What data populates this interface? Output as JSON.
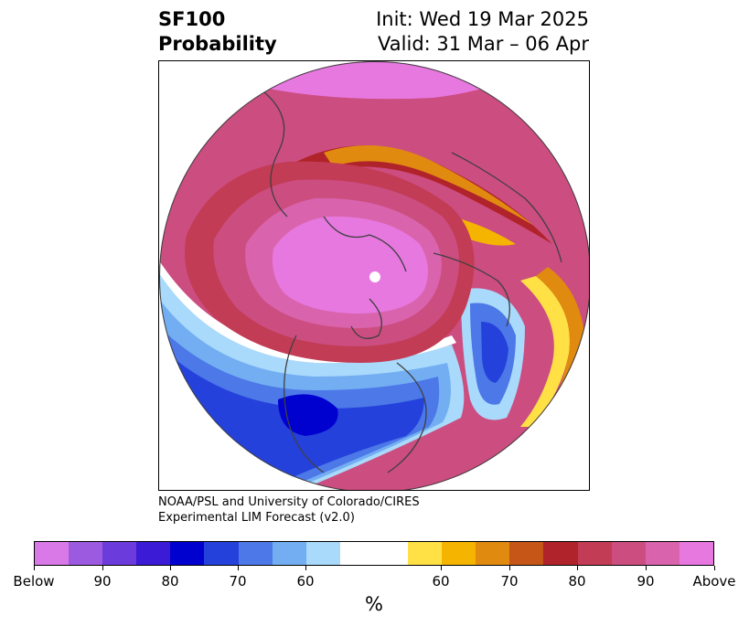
{
  "header": {
    "left_line1": "SF100",
    "left_line2": "Probability",
    "init": "Init: Wed 19 Mar 2025",
    "valid": "Valid: 31 Mar – 06 Apr"
  },
  "credit": {
    "line1": "NOAA/PSL and University of Colorado/CIRES",
    "line2": "Experimental LIM Forecast (v2.0)"
  },
  "colorbar": {
    "colors": [
      "#d979e8",
      "#9c5ae0",
      "#6c3bdb",
      "#3b1bd6",
      "#0000cf",
      "#2541dc",
      "#4c78e8",
      "#73aef2",
      "#a9d9fb",
      "#ffffff",
      "#ffffff",
      "#ffe045",
      "#f4b400",
      "#e08a10",
      "#c65518",
      "#b0232a",
      "#c23c55",
      "#cc4d80",
      "#d964ad",
      "#e678e0"
    ],
    "tick_labels": [
      "Below",
      "90",
      "80",
      "70",
      "60",
      "60",
      "70",
      "80",
      "90",
      "Above"
    ],
    "unit": "%"
  }
}
